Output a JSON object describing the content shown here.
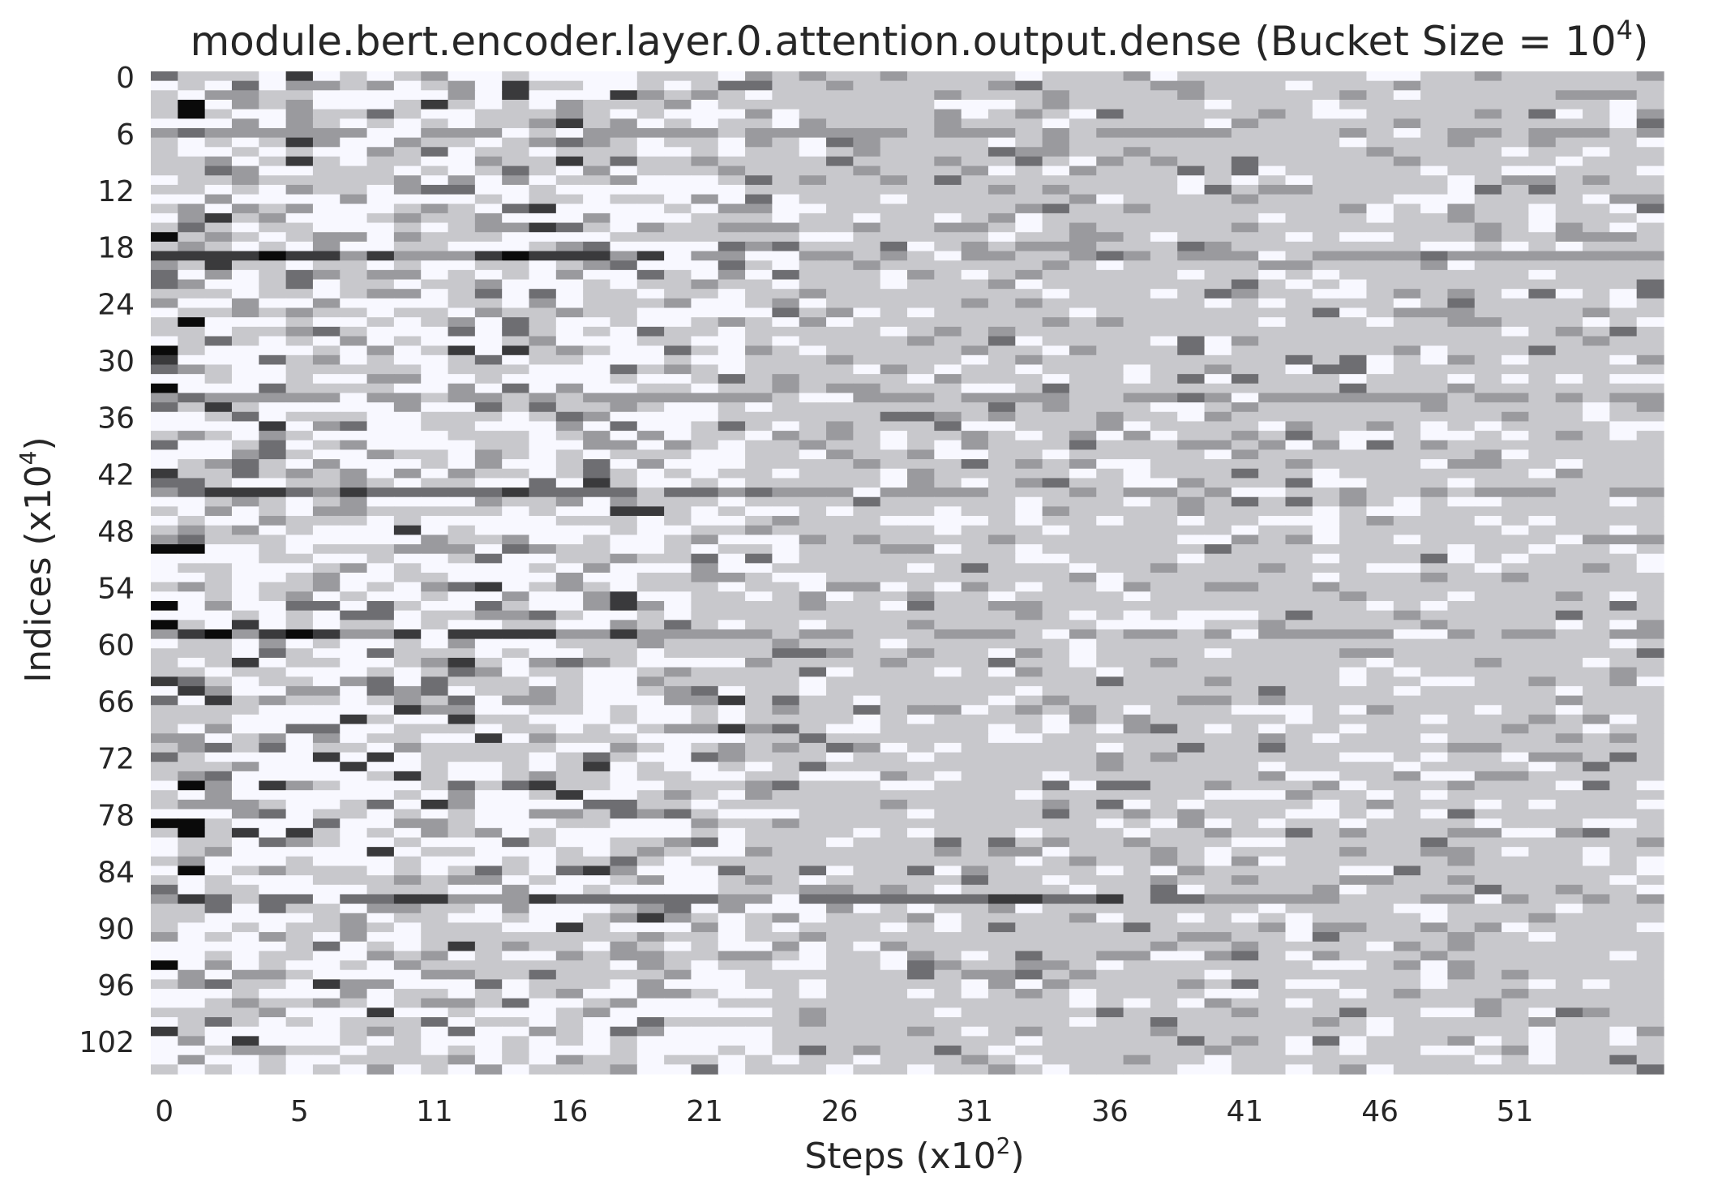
{
  "chart_data": {
    "type": "heatmap",
    "title": "module.bert.encoder.layer.0.attention.output.dense (Bucket Size = 10",
    "title_sup": "4",
    "title_end": ")",
    "xlabel": "Steps (x10",
    "xlabel_sup": "2",
    "xlabel_end": ")",
    "ylabel": "Indices (x10",
    "ylabel_sup": "4",
    "ylabel_end": ")",
    "n_rows": 106,
    "n_cols": 56,
    "x_tick_labels": [
      {
        "col": 0,
        "label": "0"
      },
      {
        "col": 5,
        "label": "5"
      },
      {
        "col": 10,
        "label": "11"
      },
      {
        "col": 15,
        "label": "16"
      },
      {
        "col": 20,
        "label": "21"
      },
      {
        "col": 25,
        "label": "26"
      },
      {
        "col": 30,
        "label": "31"
      },
      {
        "col": 35,
        "label": "36"
      },
      {
        "col": 40,
        "label": "41"
      },
      {
        "col": 45,
        "label": "46"
      },
      {
        "col": 50,
        "label": "51"
      }
    ],
    "y_tick_labels": [
      "0",
      "6",
      "12",
      "18",
      "24",
      "30",
      "36",
      "42",
      "48",
      "54",
      "60",
      "66",
      "72",
      "78",
      "84",
      "90",
      "96",
      "102"
    ],
    "y_tick_step": 6,
    "colors": [
      "#f8f8ff",
      "#c8c8cc",
      "#9a9a9e",
      "#6e6e72",
      "#3a3a3c",
      "#0a0a0a"
    ],
    "dark_rows": [
      {
        "row": 19,
        "level": 4,
        "until_col": 18
      },
      {
        "row": 59,
        "level": 4,
        "until_col": 18
      },
      {
        "row": 44,
        "level": 3,
        "until_col": 22
      },
      {
        "row": 34,
        "level": 2,
        "until_col": 10
      },
      {
        "row": 87,
        "level": 3,
        "until_col": 40
      },
      {
        "row": 6,
        "level": 2,
        "until_col": 6
      }
    ]
  }
}
